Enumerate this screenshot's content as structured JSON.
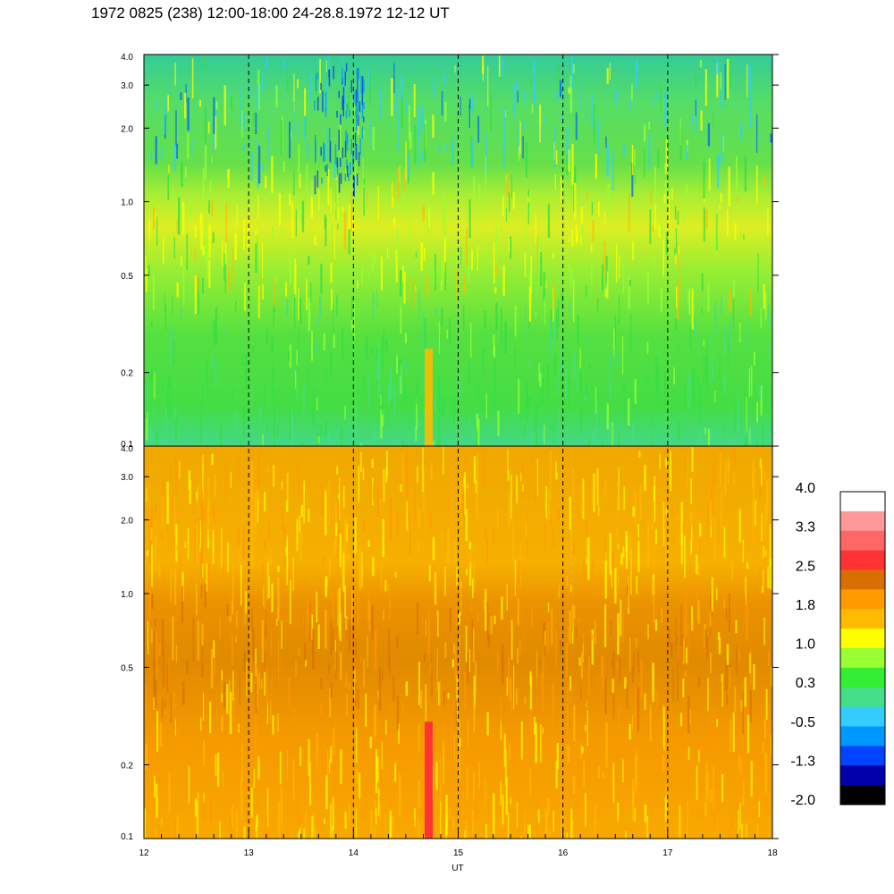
{
  "chart_data": {
    "type": "heatmap",
    "title": "1972 0825 (238) 12:00-18:00 24-28.8.1972  12-12 UT",
    "xlabel": "UT",
    "x_ticks": [
      "12",
      "13",
      "14",
      "15",
      "16",
      "17",
      "18"
    ],
    "xlim": [
      12,
      18
    ],
    "y_scale": "log",
    "ylim": [
      0.1,
      4.0
    ],
    "y_ticks": [
      "0.1",
      "0.2",
      "0.5",
      "1.0",
      "2.0",
      "3.0",
      "4.0"
    ],
    "dashed_hour_lines": [
      13,
      14,
      15,
      16,
      17
    ],
    "panels": [
      {
        "position": "top",
        "dominant_level": "0.3 to 1.0",
        "notes": "green background, yellow/orange band near 0.5-1.0, cyan/blue patches above 2.0"
      },
      {
        "position": "bottom",
        "dominant_level": "1.0 to 1.8",
        "notes": "orange/yellow background, darker orange near 0.5-1.0, red column near 14.7 UT"
      }
    ],
    "colorbar": {
      "labels": [
        "4.0",
        "3.3",
        "2.5",
        "1.8",
        "1.0",
        "0.3",
        "-0.5",
        "-1.3",
        "-2.0"
      ],
      "colors": [
        "#ffffff",
        "#ff9999",
        "#ff6666",
        "#ff3333",
        "#d96f00",
        "#ff9900",
        "#ffbb00",
        "#ffff00",
        "#99ff33",
        "#33ee33",
        "#44dd88",
        "#33ccff",
        "#0099ff",
        "#0044ff",
        "#0000aa",
        "#000000"
      ]
    }
  }
}
